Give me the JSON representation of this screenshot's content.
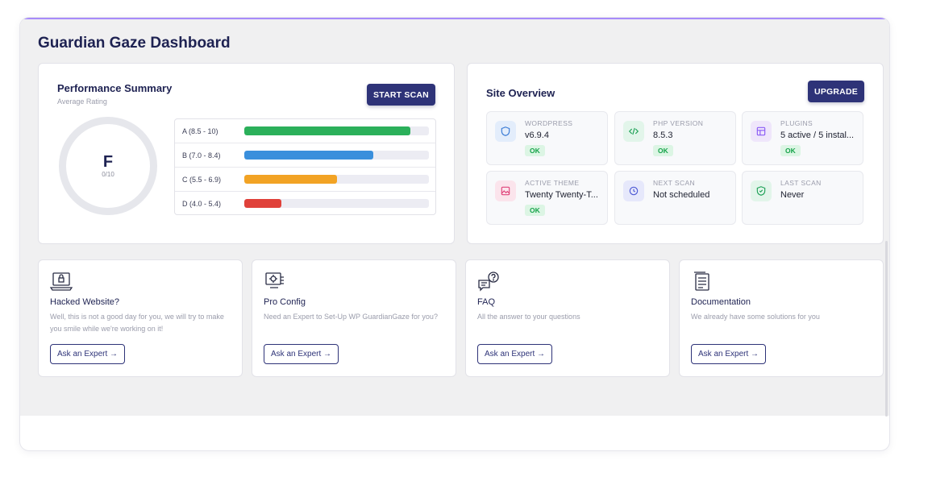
{
  "page": {
    "title": "Guardian Gaze Dashboard"
  },
  "colors": {
    "accent": "#2e3378",
    "ok": "#16a34a",
    "bar_a": "#2bb05a",
    "bar_b": "#3a8fdc",
    "bar_c": "#f2a324",
    "bar_d": "#e0413a"
  },
  "performance": {
    "title": "Performance Summary",
    "subtitle": "Average Rating",
    "scan_button": "START SCAN",
    "grade": "F",
    "score": "0/10",
    "ratings": [
      {
        "label": "A (8.5 - 10)",
        "fill": 0.9,
        "color": "#2bb05a"
      },
      {
        "label": "B (7.0 - 8.4)",
        "fill": 0.7,
        "color": "#3a8fdc"
      },
      {
        "label": "C (5.5 - 6.9)",
        "fill": 0.5,
        "color": "#f2a324"
      },
      {
        "label": "D (4.0 - 5.4)",
        "fill": 0.2,
        "color": "#e0413a"
      }
    ]
  },
  "site": {
    "title": "Site Overview",
    "upgrade_button": "UPGRADE",
    "tiles": [
      {
        "caption": "WORDPRESS",
        "value": "v6.9.4",
        "status": "OK",
        "icon": "shield-icon"
      },
      {
        "caption": "PHP VERSION",
        "value": "8.5.3",
        "status": "OK",
        "icon": "code-icon"
      },
      {
        "caption": "PLUGINS",
        "value": "5 active / 5 instal...",
        "status": "OK",
        "icon": "plugin-icon"
      },
      {
        "caption": "ACTIVE THEME",
        "value": "Twenty Twenty-T...",
        "status": "OK",
        "icon": "image-icon"
      },
      {
        "caption": "NEXT SCAN",
        "value": "Not scheduled",
        "icon": "clock-icon"
      },
      {
        "caption": "LAST SCAN",
        "value": "Never",
        "icon": "shield-check-icon"
      }
    ]
  },
  "help_cards": [
    {
      "title": "Hacked Website?",
      "text": "Well, this is not a good day for you, we will try to make you smile while we're working on it!",
      "button": "Ask an Expert",
      "icon": "laptop-lock-icon"
    },
    {
      "title": "Pro Config",
      "text": "Need an Expert to Set-Up WP GuardianGaze for you?",
      "button": "Ask an Expert",
      "icon": "config-icon"
    },
    {
      "title": "FAQ",
      "text": "All the answer to your questions",
      "button": "Ask an Expert",
      "icon": "faq-icon"
    },
    {
      "title": "Documentation",
      "text": "We already have some solutions for you",
      "button": "Ask an Expert",
      "icon": "document-icon"
    }
  ]
}
